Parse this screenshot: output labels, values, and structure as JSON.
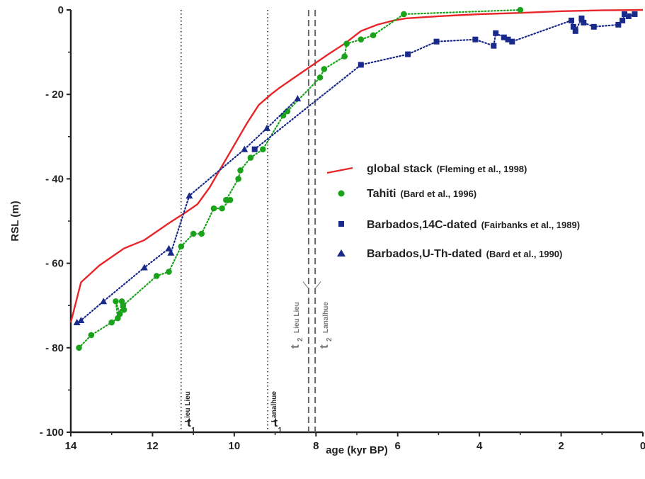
{
  "chart_data": {
    "type": "line",
    "xlabel": "age (kyr BP)",
    "ylabel": "RSL (m)",
    "xlim": [
      14,
      0
    ],
    "ylim": [
      -100,
      0
    ],
    "x_ticks": [
      14,
      12,
      10,
      8,
      6,
      4,
      2,
      0
    ],
    "x_tick_labels": [
      "14",
      "12",
      "10",
      "8",
      "6",
      "4",
      "2",
      "0"
    ],
    "y_ticks": [
      0,
      -20,
      -40,
      -60,
      -80,
      -100
    ],
    "y_tick_labels": [
      "0",
      "- 20",
      "- 40",
      "- 60",
      "- 80",
      "- 100"
    ],
    "grid": false,
    "legend_position": "center-right",
    "series": [
      {
        "name": "global stack",
        "ref": "(Fleming et al., 1998)",
        "color": "#e8262a",
        "style": "solid-line",
        "marker": "none",
        "x": [
          14.0,
          13.75,
          13.3,
          12.7,
          12.2,
          11.6,
          11.2,
          10.9,
          10.6,
          10.3,
          10.0,
          9.7,
          9.4,
          9.1,
          8.9,
          8.6,
          8.3,
          8.0,
          7.7,
          7.3,
          6.9,
          6.5,
          6.1,
          5.8,
          5.0,
          4.0,
          3.0,
          2.0,
          1.0,
          0.0
        ],
        "y": [
          -74,
          -64.5,
          -60.5,
          -56.5,
          -54.5,
          -50.5,
          -48,
          -46,
          -42,
          -37,
          -32,
          -27,
          -22.5,
          -20,
          -18.5,
          -16.5,
          -14.5,
          -12.5,
          -10.5,
          -8,
          -5,
          -3.5,
          -2.5,
          -2,
          -1.5,
          -1,
          -0.7,
          -0.3,
          -0.1,
          0
        ]
      },
      {
        "name": "Tahiti",
        "ref": "(Bard et al., 1996)",
        "color": "#1aa31a",
        "style": "dotted-line",
        "marker": "circle",
        "x": [
          13.8,
          13.5,
          13.0,
          12.85,
          12.9,
          12.8,
          12.75,
          12.7,
          12.72,
          11.9,
          11.6,
          11.3,
          11.0,
          10.8,
          10.5,
          10.3,
          10.1,
          10.2,
          9.9,
          9.85,
          9.6,
          9.3,
          8.8,
          8.7,
          7.9,
          7.8,
          7.3,
          7.25,
          6.9,
          6.6,
          5.85,
          3.0
        ],
        "y": [
          -80,
          -77,
          -74,
          -73,
          -69,
          -72,
          -69,
          -71,
          -70,
          -63,
          -62,
          -56,
          -53,
          -53,
          -47,
          -47,
          -45,
          -45,
          -40,
          -38,
          -35,
          -33,
          -25,
          -24,
          -16,
          -14,
          -11,
          -8,
          -7,
          -6,
          -1,
          0
        ]
      },
      {
        "name": "Barbados,14C-dated",
        "ref": "(Fairbanks et al., 1989)",
        "color": "#1a2a8a",
        "style": "dotted-line",
        "marker": "square",
        "x": [
          9.5,
          6.9,
          5.75,
          5.05,
          4.1,
          3.65,
          3.6,
          3.4,
          3.3,
          3.2,
          1.75,
          1.7,
          1.65,
          1.5,
          1.45,
          1.2,
          0.6,
          0.5,
          0.45,
          0.35,
          0.2
        ],
        "y": [
          -33,
          -13,
          -10.5,
          -7.5,
          -7,
          -8.5,
          -5.5,
          -6.5,
          -7,
          -7.5,
          -2.5,
          -4,
          -5,
          -2,
          -3,
          -4,
          -3.5,
          -2.5,
          -1,
          -1.5,
          -1
        ]
      },
      {
        "name": "Barbados,U-Th-dated",
        "ref": "(Bard et al., 1990)",
        "color": "#1a2a8a",
        "style": "dotted-line",
        "marker": "triangle",
        "x": [
          13.85,
          13.75,
          13.2,
          12.2,
          11.6,
          11.55,
          11.1,
          9.75,
          9.2,
          8.45
        ],
        "y": [
          -74,
          -73.5,
          -69,
          -61,
          -56.5,
          -57.5,
          -44,
          -33,
          -28,
          -21
        ]
      }
    ],
    "markers": [
      {
        "x": 11.3,
        "style": "dotted",
        "label_main": "t",
        "label_num": "1",
        "label_site": "Lieu Lieu"
      },
      {
        "x": 9.18,
        "style": "dotted",
        "label_main": "t",
        "label_num": "1",
        "label_site": "Lanalhue"
      },
      {
        "x": 8.18,
        "style": "dashed",
        "label_main": "t",
        "label_num": "2",
        "label_site": "Lieu Lieu"
      },
      {
        "x": 8.02,
        "style": "dashed",
        "label_main": "t",
        "label_num": "2",
        "label_site": "Lanalhue"
      }
    ]
  }
}
